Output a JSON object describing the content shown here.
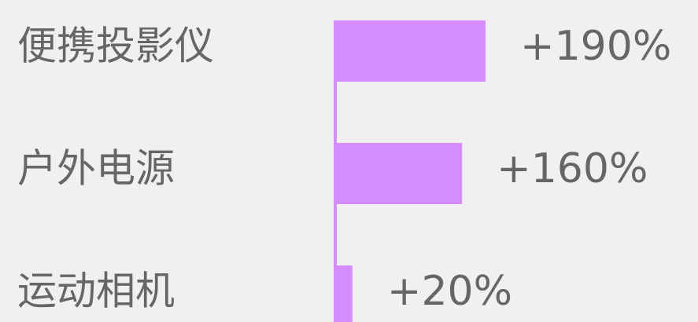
{
  "chart_data": {
    "type": "bar",
    "orientation": "horizontal",
    "categories": [
      "便携投影仪",
      "户外电源",
      "运动相机"
    ],
    "values": [
      190,
      160,
      20
    ],
    "value_labels": [
      "+190%",
      "+160%",
      "+20%"
    ],
    "color": "#d58cff"
  }
}
